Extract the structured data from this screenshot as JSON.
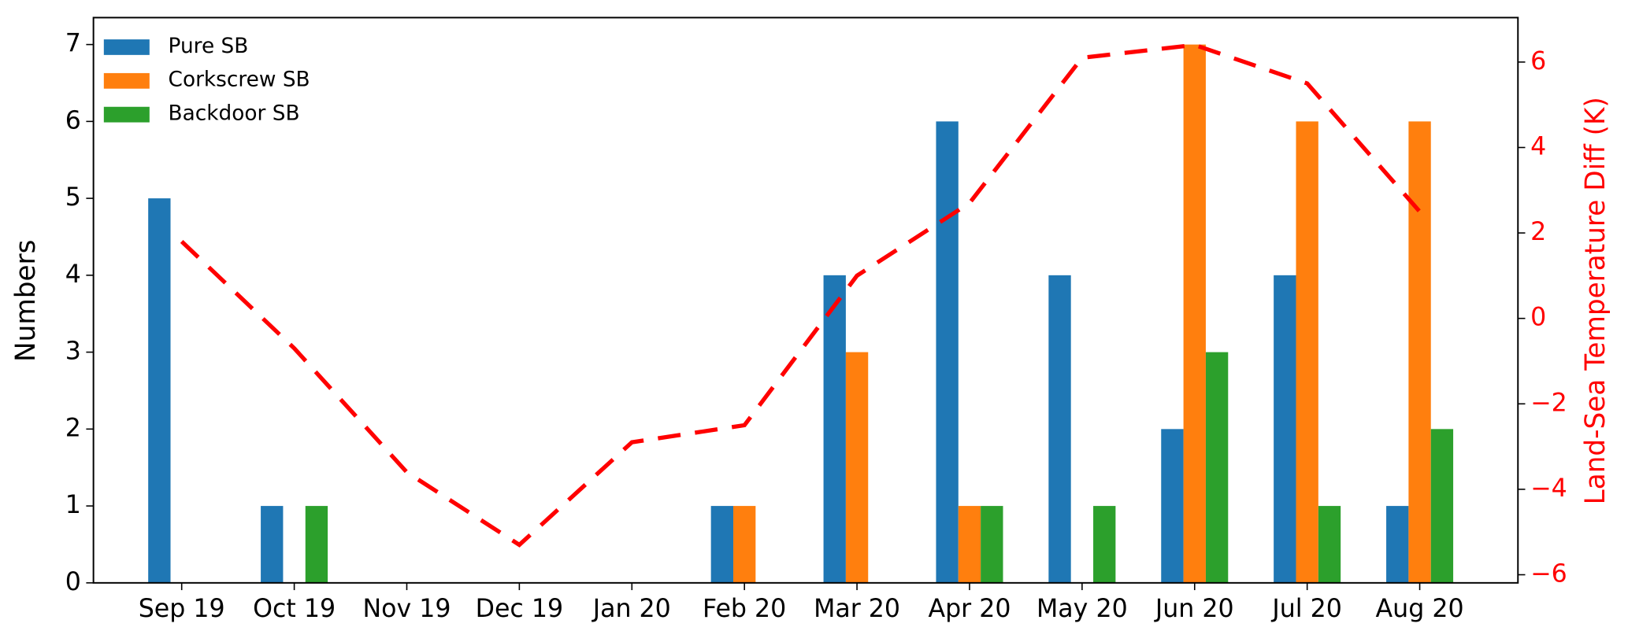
{
  "chart_data": {
    "type": "bar",
    "categories": [
      "Sep 19",
      "Oct 19",
      "Nov 19",
      "Dec 19",
      "Jan 20",
      "Feb 20",
      "Mar 20",
      "Apr 20",
      "May 20",
      "Jun 20",
      "Jul 20",
      "Aug 20"
    ],
    "series": [
      {
        "name": "Pure SB",
        "color": "#1f77b4",
        "values": [
          5,
          1,
          0,
          0,
          0,
          1,
          4,
          6,
          4,
          2,
          4,
          1
        ]
      },
      {
        "name": "Corkscrew SB",
        "color": "#ff7f0e",
        "values": [
          0,
          0,
          0,
          0,
          0,
          1,
          3,
          1,
          0,
          7,
          6,
          6
        ]
      },
      {
        "name": "Backdoor SB",
        "color": "#2ca02c",
        "values": [
          0,
          1,
          0,
          0,
          0,
          0,
          0,
          1,
          1,
          3,
          1,
          2
        ]
      }
    ],
    "line": {
      "type": "line",
      "color": "#ff0000",
      "axis": "y2",
      "values": [
        1.8,
        -0.7,
        -3.6,
        -5.3,
        -2.9,
        -2.5,
        1.0,
        2.7,
        6.1,
        6.4,
        5.5,
        2.5
      ]
    },
    "ylabel": "Numbers",
    "y2label": "Land-Sea Temperature Diff (K)",
    "ylim": [
      0,
      7.35
    ],
    "yticks": [
      0,
      1,
      2,
      3,
      4,
      5,
      6,
      7
    ],
    "y2lim": [
      -6.19,
      7.04
    ],
    "y2ticks": [
      {
        "value": -6,
        "label": "−6"
      },
      {
        "value": -4,
        "label": "−4"
      },
      {
        "value": -2,
        "label": "−2"
      },
      0,
      2,
      4,
      6
    ],
    "legend": "upper left"
  }
}
